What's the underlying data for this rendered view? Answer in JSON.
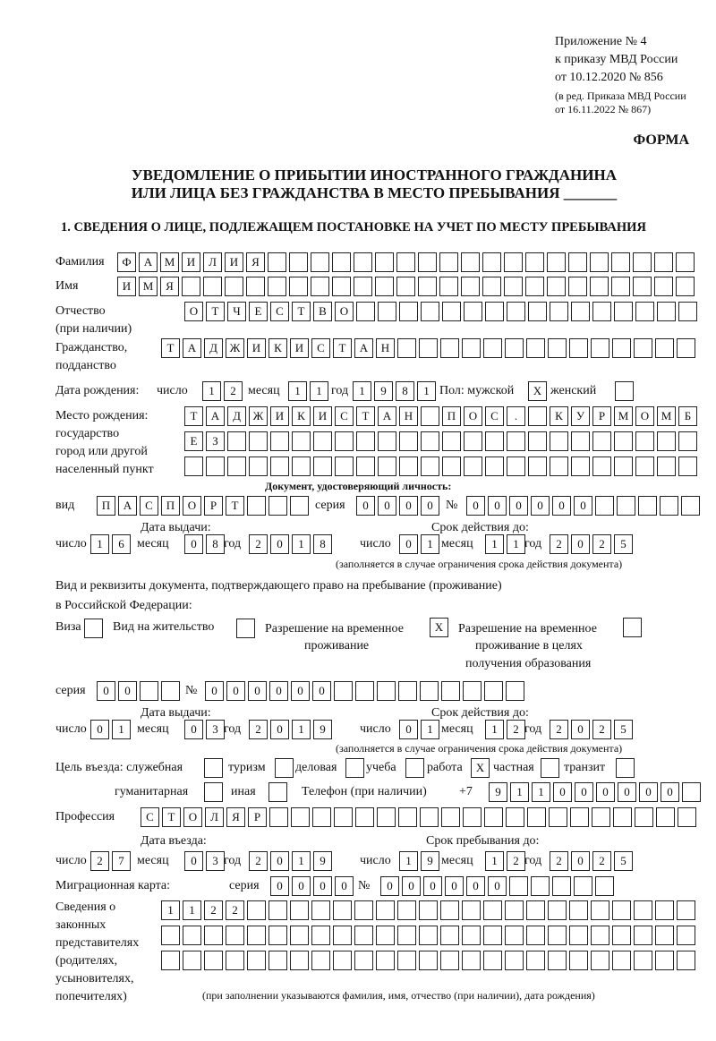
{
  "header": {
    "line1": "Приложение № 4",
    "line2": "к приказу МВД России",
    "line3": "от 10.12.2020 № 856",
    "line4": "(в ред. Приказа МВД России",
    "line5": "от 16.11.2022 № 867)",
    "form": "ФОРМА"
  },
  "title": {
    "line1": "УВЕДОМЛЕНИЕ О ПРИБЫТИИ ИНОСТРАННОГО ГРАЖДАНИНА",
    "line2": "ИЛИ ЛИЦА БЕЗ ГРАЖДАНСТВА В МЕСТО ПРЕБЫВАНИЯ _______"
  },
  "section1": "1. СВЕДЕНИЯ О ЛИЦЕ, ПОДЛЕЖАЩЕМ ПОСТАНОВКЕ НА УЧЕТ ПО МЕСТУ ПРЕБЫВАНИЯ",
  "labels": {
    "surname": "Фамилия",
    "name": "Имя",
    "patronymic": "Отчество",
    "patronymic2": "(при наличии)",
    "citizenship": "Гражданство,",
    "citizenship2": "подданство",
    "birth_date": "Дата рождения:",
    "day": "число",
    "month": "месяц",
    "year": "год",
    "sex": "Пол: мужской",
    "female": "женский",
    "birthplace": "Место рождения:",
    "bp2": "государство",
    "bp3": "город или другой",
    "bp4": "населенный пункт",
    "id_doc": "Документ, удостоверяющий личность:",
    "kind": "вид",
    "series": "серия",
    "number": "№",
    "issue_date": "Дата выдачи:",
    "valid_until": "Срок действия до:",
    "valid_note": "(заполняется в случае ограничения срока действия документа)",
    "right_doc": "Вид и реквизиты документа, подтверждающего право на пребывание (проживание)",
    "right_doc2": "в Российской Федерации:",
    "visa": "Виза",
    "residence": "Вид на жительство",
    "trp": "Разрешение на временное",
    "trp2": "проживание",
    "trp_edu": "Разрешение на временное",
    "trp_edu2": "проживание в целях",
    "trp_edu3": "получения образования",
    "purpose": "Цель въезда: служебная",
    "tourism": "туризм",
    "business": "деловая",
    "study": "учеба",
    "work": "работа",
    "private": "частная",
    "transit": "транзит",
    "humanitarian": "гуманитарная",
    "other": "иная",
    "phone": "Телефон (при наличии)",
    "phone_prefix": "+7",
    "profession": "Профессия",
    "entry_date": "Дата въезда:",
    "stay_until": "Срок пребывания до:",
    "migration_card": "Миграционная карта:",
    "reps1": "Сведения о",
    "reps2": "законных",
    "reps3": "представителях",
    "reps4": "(родителях,",
    "reps5": "усыновителях,",
    "reps6": "попечителях)",
    "reps_note": "(при заполнении указываются фамилия, имя, отчество (при наличии), дата рождения)"
  },
  "values": {
    "surname": "ФАМИЛИЯ",
    "name": "ИМЯ",
    "patronymic": "ОТЧЕСТВО",
    "citizenship": "ТАДЖИКИСТАН",
    "birth_day": "12",
    "birth_month": "11",
    "birth_year": "1981",
    "sex_male": "X",
    "sex_female": "",
    "birthplace1": "ТАДЖИКИСТАН ПОС. КУРМОМБ",
    "birthplace2": "ЕЗ",
    "birthplace3": "",
    "doc_kind": "ПАСПОРТ",
    "doc_series": "0000",
    "doc_number": "000000",
    "doc_issue_day": "16",
    "doc_issue_month": "08",
    "doc_issue_year": "2018",
    "doc_valid_day": "01",
    "doc_valid_month": "11",
    "doc_valid_year": "2025",
    "visa": "",
    "residence": "",
    "trp": "X",
    "trp_edu": "",
    "rd_series": "00",
    "rd_number": "000000",
    "rd_issue_day": "01",
    "rd_issue_month": "03",
    "rd_issue_year": "2019",
    "rd_valid_day": "01",
    "rd_valid_month": "12",
    "rd_valid_year": "2025",
    "p_service": "",
    "p_tourism": "",
    "p_business": "",
    "p_study": "",
    "p_work": "X",
    "p_private": "",
    "p_transit": "",
    "p_humanitarian": "",
    "p_other": "",
    "phone": "911000000",
    "profession": "СТОЛЯР",
    "entry_day": "27",
    "entry_month": "03",
    "entry_year": "2019",
    "stay_day": "19",
    "stay_month": "12",
    "stay_year": "2025",
    "mc_series": "0000",
    "mc_number": "000000",
    "reps1": "1122",
    "reps2": "",
    "reps3": ""
  }
}
